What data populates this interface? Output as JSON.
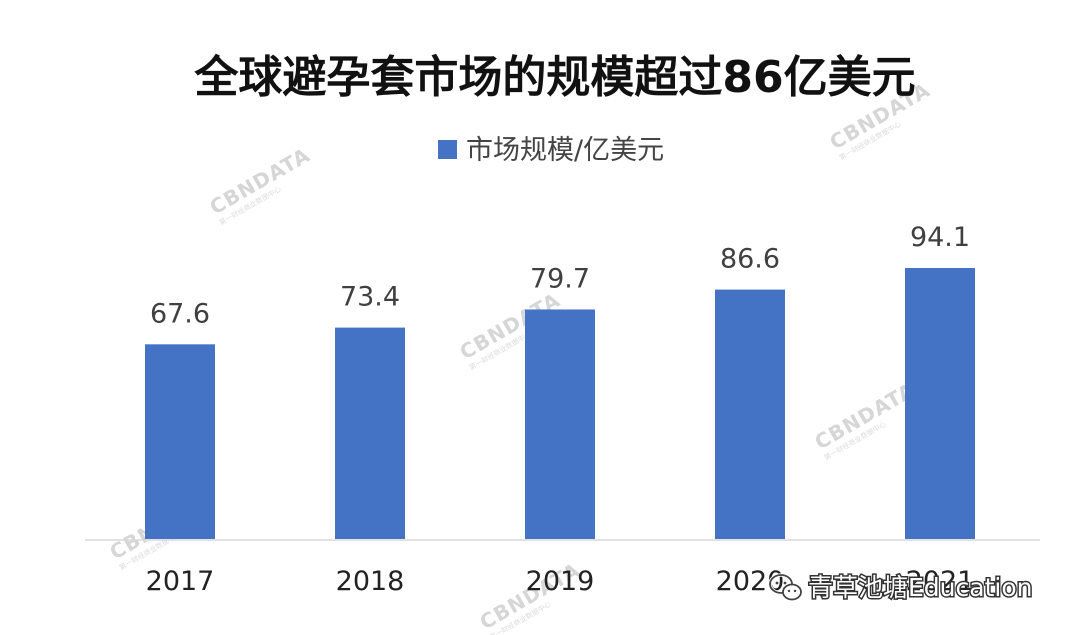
{
  "chart_data": {
    "type": "bar",
    "title": "全球避孕套市场的规模超过86亿美元",
    "categories": [
      "2017",
      "2018",
      "2019",
      "2020",
      "2021"
    ],
    "series": [
      {
        "name": "市场规模/亿美元",
        "values": [
          67.6,
          73.4,
          79.7,
          86.6,
          94.1
        ]
      }
    ],
    "value_labels": [
      "67.6",
      "73.4",
      "79.7",
      "86.6",
      "94.1"
    ],
    "legend_position": "top-center",
    "grid": false,
    "ylim": [
      0,
      100
    ],
    "bar_color": "#4472C4"
  },
  "watermarks": {
    "brand": "CBNDATA",
    "tagline": "第一财经商业数据中心"
  },
  "wechat_badge": {
    "icon": "wechat-icon",
    "text": "青草池塘Education"
  }
}
